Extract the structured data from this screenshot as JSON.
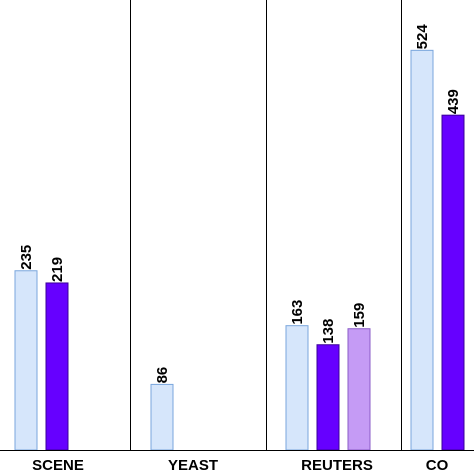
{
  "chart_data": {
    "type": "bar",
    "categories": [
      "SCENE",
      "YEAST",
      "REUTERS",
      "CO"
    ],
    "series": [
      {
        "values": [
          235,
          86,
          163,
          524
        ],
        "color": "#d6e6fb",
        "stroke": "#7aa6dc"
      },
      {
        "values": [
          219,
          null,
          138,
          439
        ],
        "color": "#6600ff",
        "stroke": "#3a0099"
      },
      {
        "values": [
          null,
          null,
          159,
          null
        ],
        "color": "#c59bf5",
        "stroke": "#8a5bc7"
      }
    ],
    "ylim": [
      0,
      590
    ],
    "grid": false,
    "legend": "none"
  }
}
